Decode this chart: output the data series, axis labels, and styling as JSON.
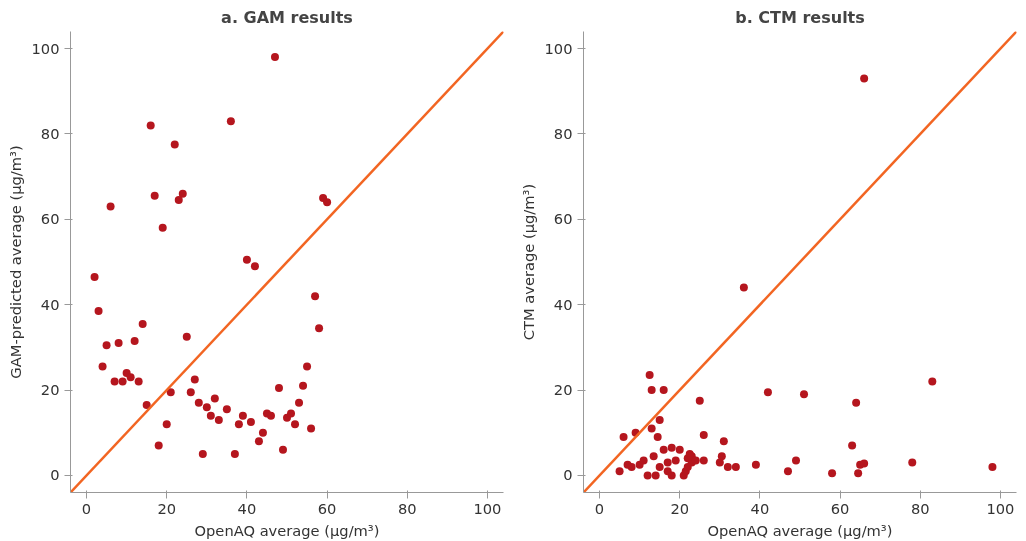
{
  "chart_data": [
    {
      "type": "scatter",
      "title": "a. GAM results",
      "xlabel": "OpenAQ average (µg/m³)",
      "ylabel": "GAM-predicted average (µg/m³)",
      "xlim": [
        -4,
        104
      ],
      "ylim": [
        -4,
        104
      ],
      "xticks": [
        0,
        20,
        40,
        60,
        80,
        100
      ],
      "yticks": [
        0,
        20,
        40,
        60,
        80,
        100
      ],
      "grid": false,
      "series": [
        {
          "marker": "circle",
          "color": "#b5161e",
          "x": [
            2,
            3,
            4,
            5,
            6,
            7,
            8,
            9,
            10,
            11,
            12,
            13,
            14,
            15,
            16,
            17,
            18,
            19,
            20,
            21,
            22,
            23,
            24,
            25,
            26,
            27,
            28,
            29,
            30,
            31,
            32,
            33,
            35,
            36,
            37,
            38,
            39,
            40,
            41,
            42,
            43,
            44,
            45,
            46,
            47,
            48,
            49,
            50,
            51,
            52,
            53,
            54,
            55,
            56,
            57,
            58,
            59,
            60
          ],
          "values": [
            46.5,
            38.5,
            25.5,
            30.5,
            63,
            22,
            31,
            22,
            24,
            23,
            31.5,
            22,
            35.5,
            16.5,
            82,
            65.5,
            7,
            58,
            12,
            19.5,
            77.5,
            64.5,
            66,
            32.5,
            19.5,
            22.5,
            17,
            5,
            16,
            14,
            18,
            13,
            15.5,
            83,
            5,
            12,
            14,
            50.5,
            12.5,
            49,
            8,
            10,
            14.5,
            14,
            98,
            20.5,
            6,
            13.5,
            14.5,
            12,
            17,
            21,
            25.5,
            11,
            42,
            34.5,
            65,
            64
          ]
        },
        {
          "type": "line",
          "color": "#f26522",
          "x": [
            -4,
            104
          ],
          "values": [
            -4,
            104
          ]
        }
      ]
    },
    {
      "type": "scatter",
      "title": "b. CTM results",
      "xlabel": "OpenAQ average (µg/m³)",
      "ylabel": "CTM average (µg/m³)",
      "xlim": [
        -4,
        104
      ],
      "ylim": [
        -4,
        104
      ],
      "xticks": [
        0,
        20,
        40,
        60,
        80,
        100
      ],
      "yticks": [
        0,
        20,
        40,
        60,
        80,
        100
      ],
      "grid": false,
      "series": [
        {
          "marker": "circle",
          "color": "#b5161e",
          "x": [
            5,
            6,
            7,
            8,
            9,
            10,
            11,
            12,
            12.5,
            13,
            13,
            13.5,
            14,
            14.5,
            15,
            15,
            16,
            16,
            17,
            17,
            18,
            18,
            19,
            20,
            21,
            21.5,
            22,
            22,
            22.5,
            23,
            23,
            24,
            25,
            26,
            26,
            30,
            30.5,
            31,
            32,
            34,
            36,
            39,
            42,
            47,
            49,
            51,
            58,
            63,
            64,
            64.5,
            65,
            66,
            66,
            78,
            83,
            98
          ],
          "values": [
            1,
            9,
            2.5,
            2,
            10,
            2.5,
            3.5,
            0,
            23.5,
            11,
            20,
            4.5,
            0,
            9,
            2,
            13,
            6,
            20,
            3,
            1,
            0,
            6.5,
            3.5,
            6,
            0,
            1,
            2,
            4,
            5,
            3,
            4.5,
            3.5,
            17.5,
            9.5,
            3.5,
            3,
            4.5,
            8,
            2,
            2,
            44,
            2.5,
            19.5,
            1,
            3.5,
            19,
            0.5,
            7,
            17,
            0.5,
            2.5,
            93,
            2.8,
            3,
            22,
            2
          ]
        },
        {
          "type": "line",
          "color": "#f26522",
          "x": [
            -4,
            104
          ],
          "values": [
            -4,
            104
          ]
        }
      ]
    }
  ]
}
